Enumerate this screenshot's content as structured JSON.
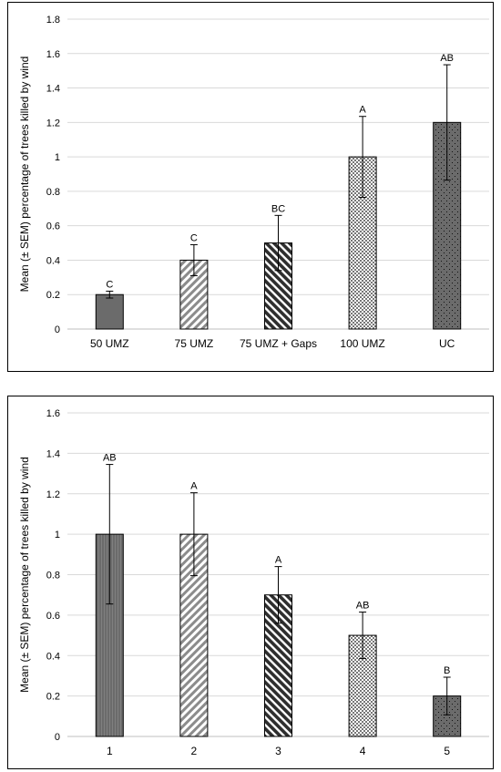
{
  "chart_data": [
    {
      "type": "bar",
      "title": "",
      "xlabel": "",
      "ylabel": "Mean (± SEM) percentage of trees killed by wind",
      "ylim": [
        0,
        1.8
      ],
      "yticks": [
        "0",
        "0.2",
        "0.4",
        "0.6",
        "0.8",
        "1",
        "1.2",
        "1.4",
        "1.6",
        "1.8"
      ],
      "grid": true,
      "categories": [
        "50 UMZ",
        "75 UMZ",
        "75 UMZ + Gaps",
        "100 UMZ",
        "UC"
      ],
      "values": [
        0.2,
        0.4,
        0.5,
        1.0,
        1.2
      ],
      "errors": [
        0.02,
        0.09,
        0.16,
        0.235,
        0.335
      ],
      "labels": [
        "C",
        "C",
        "BC",
        "A",
        "AB"
      ],
      "patterns": [
        "solid",
        "light-diagonal",
        "dark-diagonal",
        "checker",
        "dots"
      ]
    },
    {
      "type": "bar",
      "title": "",
      "xlabel": "",
      "ylabel": "Mean (± SEM) percentage of trees killed by wind",
      "ylim": [
        0,
        1.6
      ],
      "yticks": [
        "0",
        "0.2",
        "0.4",
        "0.6",
        "0.8",
        "1",
        "1.2",
        "1.4",
        "1.6"
      ],
      "grid": true,
      "categories": [
        "1",
        "2",
        "3",
        "4",
        "5"
      ],
      "values": [
        1.0,
        1.0,
        0.7,
        0.5,
        0.2
      ],
      "errors": [
        0.345,
        0.205,
        0.14,
        0.115,
        0.093
      ],
      "labels": [
        "AB",
        "A",
        "A",
        "AB",
        "B"
      ],
      "patterns": [
        "vertical",
        "light-diagonal",
        "dark-diagonal",
        "checker",
        "dots"
      ]
    }
  ],
  "colors": {
    "bar_fill": "#6b6b6b",
    "bar_edge": "#000000",
    "grid": "#d9d9d9",
    "error": "#000000"
  }
}
